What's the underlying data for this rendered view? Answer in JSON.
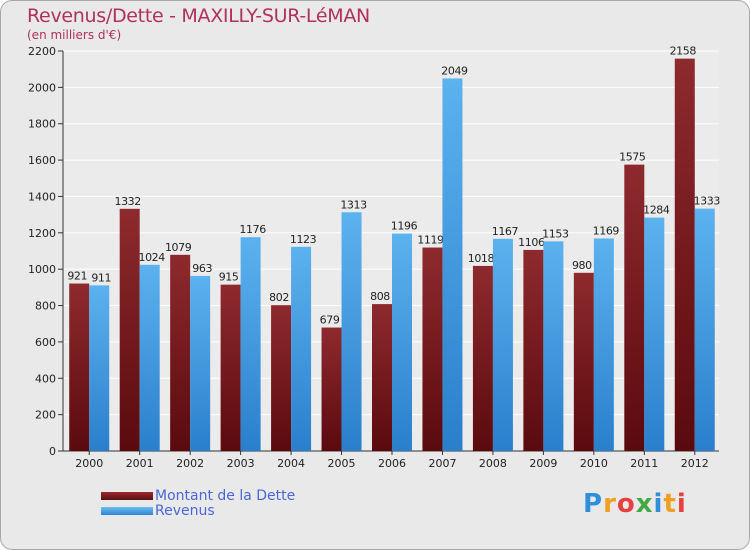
{
  "chart_data": {
    "type": "bar",
    "title": "Revenus/Dette - MAXILLY-SUR-LéMAN",
    "subtitle": "(en milliers d'€)",
    "categories": [
      "2000",
      "2001",
      "2002",
      "2003",
      "2004",
      "2005",
      "2006",
      "2007",
      "2008",
      "2009",
      "2010",
      "2011",
      "2012"
    ],
    "series": [
      {
        "name": "Montant de la Dette",
        "color": "#7a1f22",
        "values": [
          921,
          1332,
          1079,
          915,
          802,
          679,
          808,
          1119,
          1018,
          1106,
          980,
          1575,
          2158
        ]
      },
      {
        "name": "Revenus",
        "color": "#4aa3e6",
        "values": [
          911,
          1024,
          963,
          1176,
          1123,
          1313,
          1196,
          2049,
          1167,
          1153,
          1169,
          1284,
          1333
        ]
      }
    ],
    "ylim": [
      0,
      2200
    ],
    "yticks": [
      0,
      200,
      400,
      600,
      800,
      1000,
      1200,
      1400,
      1600,
      1800,
      2000,
      2200
    ],
    "grid": true,
    "legend": "bottom-left"
  },
  "logo": {
    "p": "P",
    "r": "r",
    "o": "o",
    "x": "x",
    "i": "i",
    "t": "t",
    "i2": "i"
  }
}
